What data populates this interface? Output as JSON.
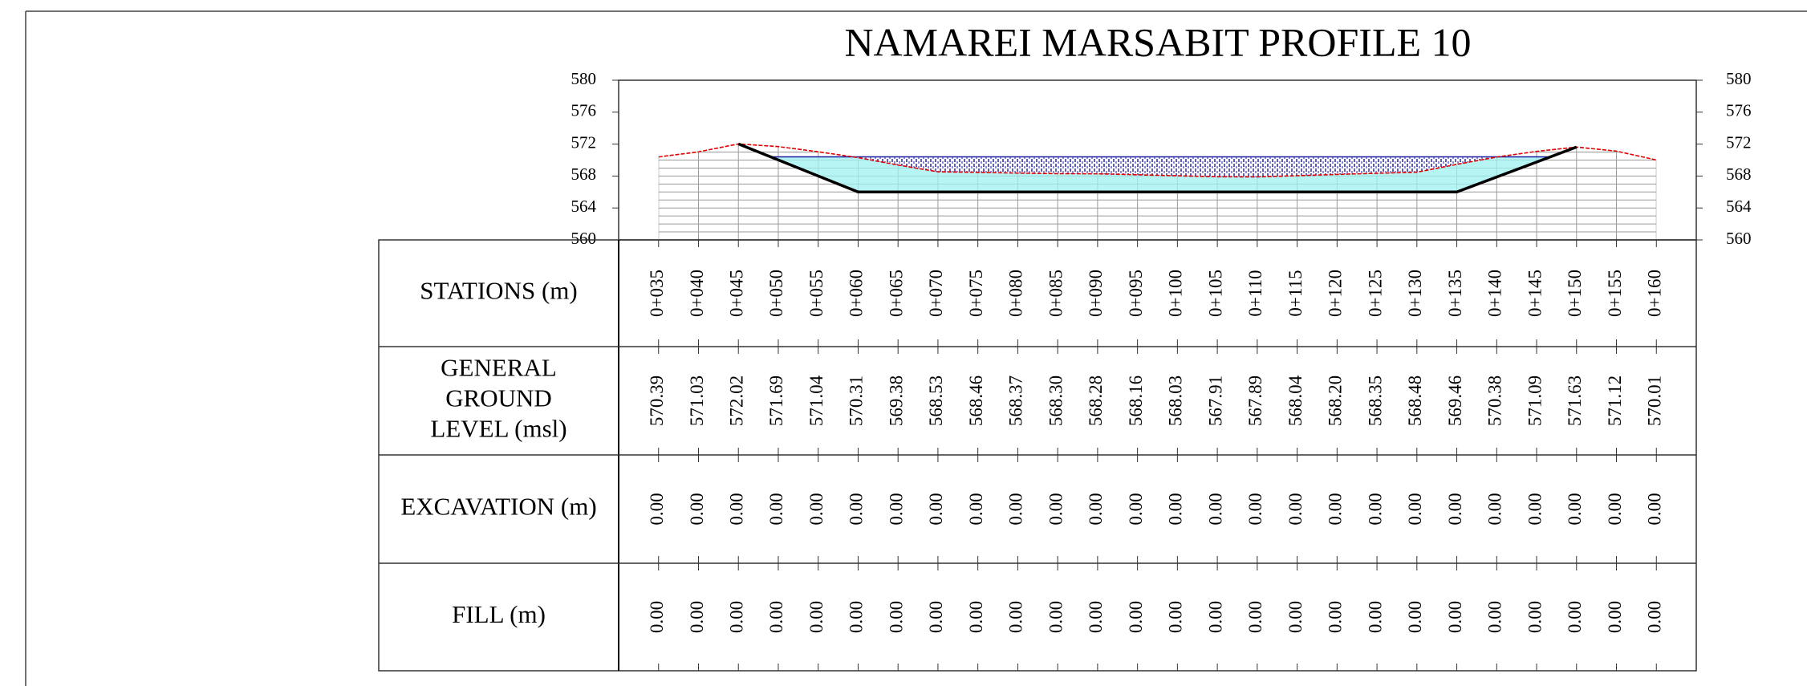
{
  "chart_data": {
    "type": "line",
    "title": "NAMAREI MARSABIT PROFILE 10",
    "xlim": [
      30,
      165
    ],
    "ylim": [
      560,
      580
    ],
    "yticks": [
      560,
      564,
      568,
      572,
      576,
      580
    ],
    "grid_yticks": [
      560,
      561,
      562,
      563,
      564,
      565,
      566,
      567,
      568,
      569,
      570,
      571,
      572
    ],
    "xticks": [
      {
        "value": 35,
        "label": "0+035"
      },
      {
        "value": 40,
        "label": "0+040"
      },
      {
        "value": 45,
        "label": "0+045"
      },
      {
        "value": 50,
        "label": "0+050"
      },
      {
        "value": 55,
        "label": "0+055"
      },
      {
        "value": 60,
        "label": "0+060"
      },
      {
        "value": 65,
        "label": "0+065"
      },
      {
        "value": 70,
        "label": "0+070"
      },
      {
        "value": 75,
        "label": "0+075"
      },
      {
        "value": 80,
        "label": "0+080"
      },
      {
        "value": 85,
        "label": "0+085"
      },
      {
        "value": 90,
        "label": "0+090"
      },
      {
        "value": 95,
        "label": "0+095"
      },
      {
        "value": 100,
        "label": "0+100"
      },
      {
        "value": 105,
        "label": "0+105"
      },
      {
        "value": 110,
        "label": "0+110"
      },
      {
        "value": 115,
        "label": "0+115"
      },
      {
        "value": 120,
        "label": "0+120"
      },
      {
        "value": 125,
        "label": "0+125"
      },
      {
        "value": 130,
        "label": "0+130"
      },
      {
        "value": 135,
        "label": "0+135"
      },
      {
        "value": 140,
        "label": "0+140"
      },
      {
        "value": 145,
        "label": "0+145"
      },
      {
        "value": 150,
        "label": "0+150"
      },
      {
        "value": 155,
        "label": "0+155"
      },
      {
        "value": 160,
        "label": "0+160"
      }
    ],
    "ground": {
      "color": "#e00000",
      "x": [
        35,
        40,
        45,
        50,
        55,
        60,
        65,
        70,
        75,
        80,
        85,
        90,
        95,
        100,
        105,
        110,
        115,
        120,
        125,
        130,
        135,
        140,
        145,
        150,
        155,
        160
      ],
      "values": [
        570.39,
        571.03,
        572.02,
        571.69,
        571.04,
        570.31,
        569.38,
        568.53,
        568.46,
        568.37,
        568.3,
        568.28,
        568.16,
        568.03,
        567.91,
        567.89,
        568.04,
        568.2,
        568.35,
        568.48,
        569.46,
        570.38,
        571.09,
        571.63,
        571.12,
        570.01
      ],
      "value_labels": [
        "570.39",
        "571.03",
        "572.02",
        "571.69",
        "571.04",
        "570.31",
        "569.38",
        "568.53",
        "568.46",
        "568.37",
        "568.30",
        "568.28",
        "568.16",
        "568.03",
        "567.91",
        "567.89",
        "568.04",
        "568.20",
        "568.35",
        "568.48",
        "569.46",
        "570.38",
        "571.09",
        "571.63",
        "571.12",
        "570.01"
      ]
    },
    "design": {
      "color": "#000000",
      "x": [
        45,
        60,
        135,
        150
      ],
      "values": [
        572.02,
        566,
        566,
        571.63
      ]
    },
    "fill_level": 570.4,
    "rows": [
      {
        "label": [
          "STATIONS (m)"
        ]
      },
      {
        "label": [
          "GENERAL",
          "GROUND",
          "LEVEL (msl)"
        ]
      },
      {
        "label": [
          "EXCAVATION (m)"
        ],
        "values": [
          "0.00",
          "0.00",
          "0.00",
          "0.00",
          "0.00",
          "0.00",
          "0.00",
          "0.00",
          "0.00",
          "0.00",
          "0.00",
          "0.00",
          "0.00",
          "0.00",
          "0.00",
          "0.00",
          "0.00",
          "0.00",
          "0.00",
          "0.00",
          "0.00",
          "0.00",
          "0.00",
          "0.00",
          "0.00",
          "0.00"
        ]
      },
      {
        "label": [
          "FILL (m)"
        ],
        "values": [
          "0.00",
          "0.00",
          "0.00",
          "0.00",
          "0.00",
          "0.00",
          "0.00",
          "0.00",
          "0.00",
          "0.00",
          "0.00",
          "0.00",
          "0.00",
          "0.00",
          "0.00",
          "0.00",
          "0.00",
          "0.00",
          "0.00",
          "0.00",
          "0.00",
          "0.00",
          "0.00",
          "0.00",
          "0.00",
          "0.00"
        ]
      }
    ]
  }
}
